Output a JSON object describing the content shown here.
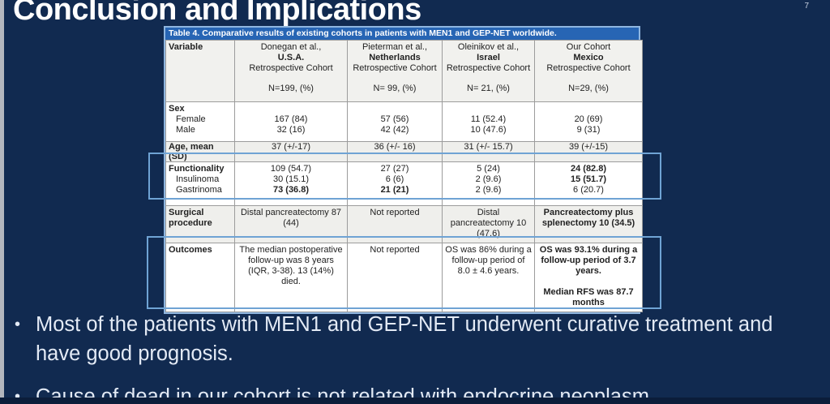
{
  "slide": {
    "title": "Conclusion and Implications",
    "page_number": "7",
    "bullet_glyph": "•",
    "bullets": [
      {
        "text": "Most of the patients with MEN1 and GEP-NET underwent curative treatment and have good prognosis."
      },
      {
        "text": "Cause of dead in our cohort is not related with endocrine neoplasm."
      }
    ]
  },
  "table": {
    "caption": "Table 4. Comparative results of existing cohorts in patients with MEN1 and GEP-NET worldwide.",
    "header": {
      "variable_label": "Variable",
      "cohorts": [
        {
          "authors": "Donegan et al.,",
          "country": "U.S.A.",
          "study_type": "Retrospective Cohort",
          "n": "N=199, (%)"
        },
        {
          "authors": "Pieterman et al.,",
          "country": "Netherlands",
          "study_type": "Retrospective Cohort",
          "n": "N= 99, (%)"
        },
        {
          "authors": "Oleinikov et al.,",
          "country": "Israel",
          "study_type": "Retrospective Cohort",
          "n": "N= 21, (%)"
        },
        {
          "authors": "Our Cohort",
          "country": "Mexico",
          "study_type": "Retrospective Cohort",
          "n": "N=29, (%)"
        }
      ]
    },
    "sex": {
      "label": "Sex",
      "female_label": "Female",
      "male_label": "Male",
      "female": [
        "167 (84)",
        "57 (56)",
        "11 (52.4)",
        "20 (69)"
      ],
      "male": [
        "32 (16)",
        "42 (42)",
        "10 (47.6)",
        "9 (31)"
      ]
    },
    "age": {
      "label": "Age, mean (SD)",
      "values": [
        "37 (+/-17)",
        "36 (+/- 16)",
        "31 (+/- 15.7)",
        "39 (+/-15)"
      ]
    },
    "functionality": {
      "label": "Functionality",
      "insulinoma_label": "Insulinoma",
      "gastrinoma_label": "Gastrinoma",
      "total": [
        "109 (54.7)",
        "27 (27)",
        "5 (24)",
        "24 (82.8)"
      ],
      "insulinoma": [
        "30 (15.1)",
        "6 (6)",
        "2 (9.6)",
        "15 (51.7)"
      ],
      "gastrinoma": [
        "73 (36.8)",
        "21 (21)",
        "2 (9.6)",
        "6 (20.7)"
      ]
    },
    "surgical": {
      "label": "Surgical procedure",
      "values": [
        "Distal pancreatectomy 87 (44)",
        "Not reported",
        "Distal pancreatectomy 10 (47.6)",
        "Pancreatectomy plus splenectomy 10 (34.5)"
      ]
    },
    "outcomes": {
      "label": "Outcomes",
      "values": [
        "The median postoperative follow-up was 8 years (IQR, 3-38). 13 (14%) died.",
        "Not reported",
        "OS was 86% during a follow-up period of 8.0 ± 4.6 years."
      ],
      "our_cohort_os": "OS was 93.1% during a follow-up period of 3.7 years.",
      "our_cohort_rfs": "Median RFS was 87.7 months"
    }
  },
  "colors": {
    "background": "#112a50",
    "caption_bar": "#2765b4",
    "table_border": "#8fb6e0",
    "highlight_box": "#6fa3d4",
    "bullet_text": "#e3eaf5"
  }
}
